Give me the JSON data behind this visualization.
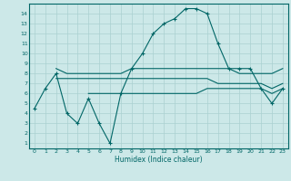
{
  "xlabel": "Humidex (Indice chaleur)",
  "bg_color": "#cce8e8",
  "line_color": "#006666",
  "grid_color": "#aad0d0",
  "xlim": [
    -0.5,
    23.5
  ],
  "ylim": [
    0.5,
    15.0
  ],
  "xticks": [
    0,
    1,
    2,
    3,
    4,
    5,
    6,
    7,
    8,
    9,
    10,
    11,
    12,
    13,
    14,
    15,
    16,
    17,
    18,
    19,
    20,
    21,
    22,
    23
  ],
  "yticks": [
    1,
    2,
    3,
    4,
    5,
    6,
    7,
    8,
    9,
    10,
    11,
    12,
    13,
    14
  ],
  "main_x": [
    0,
    1,
    2,
    3,
    4,
    5,
    6,
    7,
    8,
    9,
    10,
    11,
    12,
    13,
    14,
    15,
    16,
    17,
    18,
    19,
    20,
    21,
    22,
    23
  ],
  "main_y": [
    4.5,
    6.5,
    8.0,
    4.0,
    3.0,
    5.5,
    3.0,
    1.0,
    6.0,
    8.5,
    10.0,
    12.0,
    13.0,
    13.5,
    14.5,
    14.5,
    14.0,
    11.0,
    8.5,
    8.5,
    8.5,
    6.5,
    5.0,
    6.5
  ],
  "line2_x": [
    2,
    3,
    4,
    5,
    6,
    7,
    8,
    9,
    10,
    11,
    12,
    13,
    14,
    15,
    16,
    17,
    18,
    19,
    20,
    21,
    22,
    23
  ],
  "line2_y": [
    8.5,
    8.0,
    8.0,
    8.0,
    8.0,
    8.0,
    8.0,
    8.5,
    8.5,
    8.5,
    8.5,
    8.5,
    8.5,
    8.5,
    8.5,
    8.5,
    8.5,
    8.0,
    8.0,
    8.0,
    8.0,
    8.5
  ],
  "line3_x": [
    2,
    3,
    4,
    5,
    6,
    7,
    8,
    9,
    10,
    11,
    12,
    13,
    14,
    15,
    16,
    17,
    18,
    19,
    20,
    21,
    22,
    23
  ],
  "line3_y": [
    7.5,
    7.5,
    7.5,
    7.5,
    7.5,
    7.5,
    7.5,
    7.5,
    7.5,
    7.5,
    7.5,
    7.5,
    7.5,
    7.5,
    7.5,
    7.0,
    7.0,
    7.0,
    7.0,
    7.0,
    6.5,
    7.0
  ],
  "line4_x": [
    5,
    6,
    7,
    8,
    9,
    10,
    11,
    12,
    13,
    14,
    15,
    16,
    17,
    18,
    19,
    20,
    21,
    22,
    23
  ],
  "line4_y": [
    6.0,
    6.0,
    6.0,
    6.0,
    6.0,
    6.0,
    6.0,
    6.0,
    6.0,
    6.0,
    6.0,
    6.5,
    6.5,
    6.5,
    6.5,
    6.5,
    6.5,
    6.0,
    6.5
  ]
}
